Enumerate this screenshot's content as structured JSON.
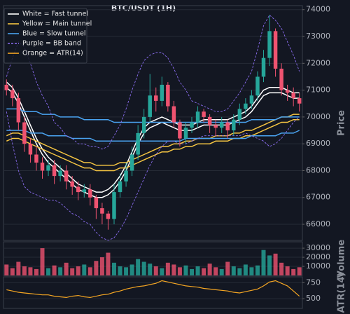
{
  "chart_data": [
    {
      "type": "candlestick",
      "title": "BTC/USDT (1H)",
      "y_label": "Price",
      "ylim": [
        65400,
        74150
      ],
      "yticks": [
        66000,
        67000,
        68000,
        69000,
        70000,
        71000,
        72000,
        73000,
        74000
      ],
      "grid": true,
      "up_color": "#26a69a",
      "down_color": "#ef5370",
      "open": [
        71200,
        71000,
        70700,
        69800,
        69000,
        68600,
        68300,
        68000,
        68200,
        67800,
        68000,
        67600,
        67400,
        67200,
        67300,
        67000,
        66600,
        66400,
        66200,
        67200,
        67600,
        68000,
        68600,
        69400,
        70000,
        70800,
        70600,
        71200,
        70400,
        69800,
        69200,
        69600,
        69800,
        70200,
        70000,
        69700,
        69600,
        69800,
        69500,
        69900,
        70300,
        70500,
        70800,
        71500,
        72200,
        73200,
        71800,
        71000,
        70900,
        70700
      ],
      "high": [
        71400,
        71200,
        70900,
        70000,
        69200,
        68900,
        68500,
        68400,
        68400,
        68200,
        68200,
        67800,
        67600,
        67500,
        67500,
        67100,
        66800,
        66500,
        67500,
        67900,
        68300,
        68900,
        69700,
        70300,
        71600,
        71100,
        71500,
        71300,
        70600,
        69900,
        69800,
        70000,
        70400,
        70300,
        70100,
        69900,
        70000,
        69900,
        70100,
        70500,
        70700,
        71000,
        71700,
        72500,
        73800,
        73300,
        72000,
        71200,
        71100,
        70900
      ],
      "low": [
        70800,
        70400,
        69500,
        68700,
        68300,
        68000,
        67700,
        67800,
        67500,
        67600,
        67300,
        67100,
        66900,
        67000,
        66700,
        66200,
        66000,
        65800,
        66000,
        67000,
        67400,
        67800,
        68400,
        69200,
        69800,
        70200,
        70400,
        70200,
        69600,
        68900,
        69000,
        69400,
        69600,
        69800,
        69400,
        69300,
        69400,
        69200,
        69300,
        69700,
        70100,
        70300,
        70600,
        71300,
        71900,
        71500,
        70800,
        70600,
        70400,
        70200
      ],
      "close": [
        71000,
        70700,
        69800,
        69000,
        68600,
        68300,
        68000,
        68200,
        67800,
        68000,
        67600,
        67400,
        67200,
        67300,
        67000,
        66600,
        66400,
        66200,
        67200,
        67600,
        68000,
        68600,
        69400,
        70000,
        70800,
        70600,
        71200,
        70400,
        69800,
        69200,
        69600,
        69800,
        70200,
        70000,
        69700,
        69600,
        69800,
        69500,
        69900,
        70300,
        70500,
        70800,
        71500,
        72200,
        73200,
        71800,
        71000,
        70900,
        70700,
        70500
      ],
      "overlays": [
        {
          "name": "White = Fast tunnel",
          "color": "#ffffff",
          "dashed": false,
          "upper": [
            71300,
            71100,
            70700,
            70200,
            69700,
            69200,
            68800,
            68500,
            68300,
            68100,
            67900,
            67700,
            67500,
            67400,
            67300,
            67200,
            67200,
            67300,
            67500,
            67800,
            68200,
            68700,
            69200,
            69600,
            69800,
            69900,
            70000,
            69900,
            69800,
            69700,
            69700,
            69700,
            69800,
            69900,
            69900,
            69900,
            69900,
            69900,
            70000,
            70100,
            70200,
            70400,
            70700,
            71000,
            71100,
            71100,
            71100,
            71000,
            70900,
            70900
          ],
          "lower": [
            71100,
            70900,
            70500,
            70000,
            69500,
            69000,
            68600,
            68300,
            68100,
            67900,
            67700,
            67500,
            67300,
            67200,
            67100,
            67000,
            67000,
            67100,
            67300,
            67600,
            68000,
            68500,
            69000,
            69400,
            69600,
            69700,
            69800,
            69700,
            69600,
            69500,
            69500,
            69500,
            69600,
            69700,
            69700,
            69700,
            69700,
            69700,
            69800,
            69900,
            70000,
            70200,
            70500,
            70800,
            70900,
            70900,
            70900,
            70800,
            70700,
            70700
          ]
        },
        {
          "name": "Yellow = Main tunnel",
          "color": "#f5c542",
          "dashed": false,
          "upper": [
            69300,
            69400,
            69400,
            69300,
            69200,
            69100,
            69000,
            68900,
            68800,
            68700,
            68600,
            68500,
            68400,
            68300,
            68300,
            68200,
            68200,
            68200,
            68200,
            68300,
            68300,
            68400,
            68500,
            68600,
            68700,
            68800,
            68900,
            68900,
            69000,
            69000,
            69100,
            69100,
            69200,
            69200,
            69200,
            69300,
            69300,
            69300,
            69400,
            69400,
            69500,
            69500,
            69600,
            69700,
            69800,
            69900,
            70000,
            70000,
            70100,
            70100
          ],
          "lower": [
            69100,
            69200,
            69200,
            69100,
            69000,
            68900,
            68800,
            68700,
            68600,
            68500,
            68400,
            68300,
            68200,
            68100,
            68100,
            68000,
            68000,
            68000,
            68000,
            68100,
            68100,
            68200,
            68300,
            68400,
            68500,
            68600,
            68700,
            68700,
            68800,
            68800,
            68900,
            68900,
            69000,
            69000,
            69000,
            69100,
            69100,
            69100,
            69200,
            69200,
            69300,
            69300,
            69400,
            69500,
            69600,
            69700,
            69800,
            69800,
            69900,
            69900
          ]
        },
        {
          "name": "Blue = Slow tunnel",
          "color": "#4aa3f0",
          "dashed": false,
          "upper": [
            70300,
            70300,
            70300,
            70200,
            70200,
            70200,
            70100,
            70100,
            70100,
            70000,
            70000,
            70000,
            70000,
            69900,
            69900,
            69900,
            69900,
            69900,
            69800,
            69800,
            69800,
            69800,
            69800,
            69800,
            69800,
            69800,
            69800,
            69800,
            69800,
            69800,
            69800,
            69800,
            69800,
            69800,
            69800,
            69800,
            69800,
            69800,
            69800,
            69800,
            69800,
            69900,
            69900,
            69900,
            69900,
            69900,
            70000,
            70000,
            70000,
            70000
          ],
          "lower": [
            69500,
            69500,
            69500,
            69500,
            69400,
            69400,
            69400,
            69300,
            69300,
            69300,
            69300,
            69200,
            69200,
            69200,
            69200,
            69100,
            69100,
            69100,
            69100,
            69100,
            69100,
            69100,
            69100,
            69100,
            69100,
            69100,
            69100,
            69100,
            69100,
            69100,
            69200,
            69200,
            69200,
            69200,
            69200,
            69200,
            69200,
            69200,
            69200,
            69200,
            69200,
            69300,
            69300,
            69300,
            69300,
            69300,
            69400,
            69400,
            69400,
            69500
          ]
        },
        {
          "name": "Purple = BB band",
          "color": "#8a6cf0",
          "dashed": true,
          "upper": [
            71500,
            72200,
            72800,
            72600,
            72000,
            71300,
            70800,
            70400,
            69800,
            69600,
            69300,
            69200,
            69000,
            69000,
            68900,
            68900,
            68800,
            68900,
            69300,
            69700,
            70300,
            71000,
            71600,
            72100,
            72300,
            72400,
            72400,
            72200,
            71800,
            71300,
            71000,
            70600,
            70500,
            70400,
            70300,
            70200,
            70200,
            70300,
            70600,
            70900,
            71300,
            71700,
            72500,
            73400,
            73800,
            73600,
            73300,
            72800,
            72300,
            71700
          ],
          "lower": [
            70200,
            69000,
            68000,
            67400,
            67200,
            67100,
            67000,
            66900,
            66900,
            66800,
            66600,
            66400,
            66300,
            66100,
            66000,
            65700,
            65500,
            65400,
            65500,
            65800,
            66200,
            66700,
            67200,
            67700,
            68200,
            68600,
            68900,
            69100,
            69100,
            69000,
            69000,
            69100,
            69200,
            69300,
            69300,
            69300,
            69300,
            69300,
            69300,
            69300,
            69400,
            69300,
            69200,
            69100,
            68900,
            69000,
            69200,
            69500,
            69800,
            70000
          ]
        }
      ]
    },
    {
      "type": "bar",
      "y_label": "Volume",
      "ylim": [
        0,
        37000
      ],
      "yticks": [
        10000,
        20000,
        30000
      ],
      "values": [
        12000,
        8000,
        15000,
        10000,
        9000,
        7000,
        30000,
        8000,
        11000,
        9000,
        14000,
        8000,
        10000,
        12000,
        9000,
        16000,
        20000,
        25000,
        14000,
        10000,
        9000,
        12000,
        18000,
        15000,
        13000,
        10000,
        8000,
        14000,
        12000,
        9000,
        11000,
        7000,
        10000,
        8000,
        13000,
        9000,
        7000,
        15000,
        10000,
        8000,
        12000,
        9000,
        11000,
        28000,
        22000,
        24000,
        14000,
        10000,
        7000,
        9000
      ]
    },
    {
      "type": "line",
      "y_label": "ATR(14)",
      "ylim": [
        350,
        840
      ],
      "yticks": [
        500,
        750
      ],
      "series": [
        {
          "name": "Orange = ATR(14)",
          "color": "#f5a623",
          "values": [
            640,
            620,
            600,
            590,
            580,
            570,
            560,
            560,
            540,
            530,
            520,
            540,
            550,
            530,
            520,
            540,
            560,
            570,
            600,
            620,
            650,
            670,
            690,
            700,
            720,
            740,
            780,
            760,
            740,
            720,
            700,
            690,
            680,
            660,
            650,
            640,
            630,
            620,
            600,
            590,
            610,
            630,
            650,
            700,
            760,
            780,
            740,
            700,
            620,
            540
          ]
        }
      ]
    }
  ]
}
